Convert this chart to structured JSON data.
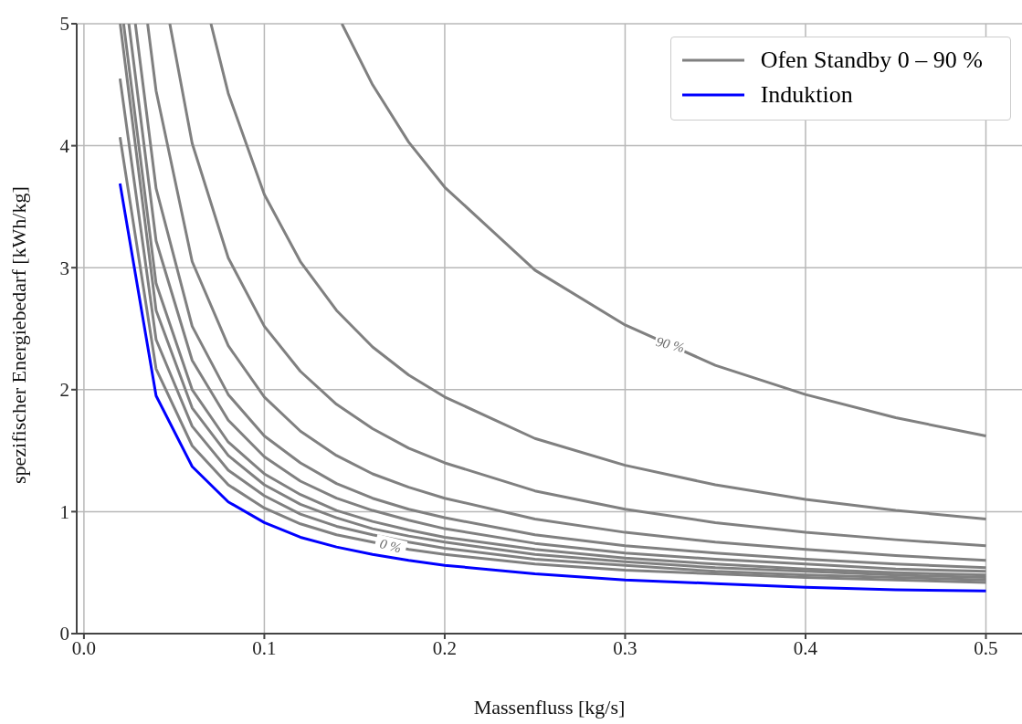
{
  "chart_data": {
    "type": "line",
    "xlabel": "Massenfluss [kg/s]",
    "ylabel": "spezifischer Energiebedarf [kWh/kg]",
    "xlim": [
      -0.004,
      0.52
    ],
    "xticks": [
      {
        "value": 0,
        "label": "0.0"
      },
      0.1,
      0.2,
      0.3,
      0.4,
      0.5
    ],
    "ylim": [
      0,
      5
    ],
    "yticks": [
      0,
      1,
      2,
      3,
      4,
      5
    ],
    "grid": true,
    "legend": "top right",
    "marker": "none",
    "line_style": "solid",
    "annotations": [
      {
        "text": "90 %",
        "x": 0.325,
        "y": 2.37
      },
      {
        "text": "0 %",
        "x": 0.17,
        "y": 0.72
      }
    ],
    "series": [
      {
        "name": "Ofen Standby 0 – 90 %",
        "color": "#808080",
        "x": [
          0.02,
          0.04,
          0.06,
          0.08,
          0.1,
          0.12,
          0.14,
          0.16,
          0.18,
          0.2,
          0.25,
          0.3,
          0.35,
          0.4,
          0.45,
          0.5
        ],
        "values": [
          4.07,
          2.17,
          1.54,
          1.22,
          1.03,
          0.9,
          0.81,
          0.75,
          0.69,
          0.65,
          0.57,
          0.52,
          0.49,
          0.46,
          0.44,
          0.42
        ]
      },
      {
        "color": "#808080",
        "x": [
          0.02,
          0.04,
          0.06,
          0.08,
          0.1,
          0.12,
          0.14,
          0.16,
          0.18,
          0.2,
          0.25,
          0.3,
          0.35,
          0.4,
          0.45,
          0.5
        ],
        "values": [
          4.55,
          2.41,
          1.7,
          1.34,
          1.13,
          0.98,
          0.88,
          0.81,
          0.75,
          0.7,
          0.61,
          0.56,
          0.51,
          0.48,
          0.46,
          0.44
        ]
      },
      {
        "color": "#808080",
        "x": [
          0.0201,
          0.04,
          0.06,
          0.08,
          0.1,
          0.12,
          0.14,
          0.16,
          0.18,
          0.2,
          0.25,
          0.3,
          0.35,
          0.4,
          0.45,
          0.5
        ],
        "values": [
          5,
          2.65,
          1.85,
          1.46,
          1.22,
          1.06,
          0.95,
          0.86,
          0.8,
          0.75,
          0.65,
          0.59,
          0.54,
          0.51,
          0.48,
          0.46
        ]
      },
      {
        "color": "#808080",
        "x": [
          0.022,
          0.04,
          0.06,
          0.08,
          0.1,
          0.12,
          0.14,
          0.16,
          0.18,
          0.2,
          0.25,
          0.3,
          0.35,
          0.4,
          0.45,
          0.5
        ],
        "values": [
          5,
          2.87,
          2.0,
          1.57,
          1.31,
          1.14,
          1.01,
          0.92,
          0.85,
          0.79,
          0.69,
          0.62,
          0.57,
          0.53,
          0.5,
          0.48
        ]
      },
      {
        "color": "#808080",
        "x": [
          0.0249,
          0.04,
          0.06,
          0.08,
          0.1,
          0.12,
          0.14,
          0.16,
          0.18,
          0.2,
          0.25,
          0.3,
          0.35,
          0.4,
          0.45,
          0.5
        ],
        "values": [
          5,
          3.22,
          2.24,
          1.75,
          1.45,
          1.25,
          1.11,
          1.01,
          0.93,
          0.86,
          0.74,
          0.66,
          0.61,
          0.57,
          0.53,
          0.51
        ]
      },
      {
        "color": "#808080",
        "x": [
          0.0285,
          0.04,
          0.06,
          0.08,
          0.1,
          0.12,
          0.14,
          0.16,
          0.18,
          0.2,
          0.25,
          0.3,
          0.35,
          0.4,
          0.45,
          0.5
        ],
        "values": [
          5,
          3.65,
          2.52,
          1.96,
          1.62,
          1.4,
          1.23,
          1.11,
          1.02,
          0.95,
          0.81,
          0.72,
          0.66,
          0.61,
          0.57,
          0.54
        ]
      },
      {
        "color": "#808080",
        "x": [
          0.0353,
          0.04,
          0.06,
          0.08,
          0.1,
          0.12,
          0.14,
          0.16,
          0.18,
          0.2,
          0.25,
          0.3,
          0.35,
          0.4,
          0.45,
          0.5
        ],
        "values": [
          5,
          4.45,
          3.05,
          2.36,
          1.94,
          1.66,
          1.46,
          1.31,
          1.2,
          1.11,
          0.94,
          0.83,
          0.75,
          0.69,
          0.64,
          0.6
        ]
      },
      {
        "color": "#808080",
        "x": [
          0.0476,
          0.06,
          0.08,
          0.1,
          0.12,
          0.14,
          0.16,
          0.18,
          0.2,
          0.25,
          0.3,
          0.35,
          0.4,
          0.45,
          0.5
        ],
        "values": [
          5,
          4.02,
          3.08,
          2.52,
          2.15,
          1.88,
          1.68,
          1.52,
          1.4,
          1.17,
          1.02,
          0.91,
          0.83,
          0.77,
          0.72
        ]
      },
      {
        "color": "#808080",
        "x": [
          0.0704,
          0.08,
          0.1,
          0.12,
          0.14,
          0.16,
          0.18,
          0.2,
          0.25,
          0.3,
          0.35,
          0.4,
          0.45,
          0.5
        ],
        "values": [
          5,
          4.43,
          3.6,
          3.05,
          2.65,
          2.35,
          2.12,
          1.94,
          1.6,
          1.38,
          1.22,
          1.1,
          1.01,
          0.94
        ]
      },
      {
        "color": "#808080",
        "x": [
          0.143,
          0.16,
          0.18,
          0.2,
          0.25,
          0.3,
          0.35,
          0.4,
          0.45,
          0.5
        ],
        "values": [
          5,
          4.5,
          4.03,
          3.66,
          2.98,
          2.53,
          2.2,
          1.96,
          1.77,
          1.62
        ]
      },
      {
        "name": "Induktion",
        "color": "#0000ff",
        "x": [
          0.02,
          0.04,
          0.06,
          0.08,
          0.1,
          0.12,
          0.14,
          0.16,
          0.18,
          0.2,
          0.25,
          0.3,
          0.35,
          0.4,
          0.45,
          0.5
        ],
        "values": [
          3.69,
          1.95,
          1.37,
          1.08,
          0.91,
          0.79,
          0.71,
          0.65,
          0.6,
          0.56,
          0.49,
          0.44,
          0.41,
          0.38,
          0.36,
          0.35
        ]
      }
    ]
  }
}
